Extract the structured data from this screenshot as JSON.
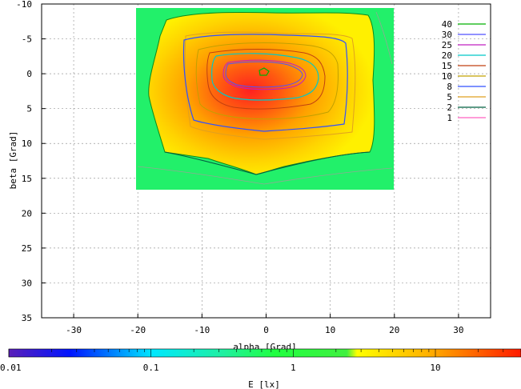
{
  "chart_data": {
    "type": "heatmap",
    "xlabel": "alpha [Grad]",
    "ylabel": "beta [Grad]",
    "xlim": [
      -35,
      35
    ],
    "ylim": [
      -10,
      35
    ],
    "y_inverted": true,
    "x_ticks": [
      "-30",
      "-20",
      "-10",
      "0",
      "10",
      "20",
      "30"
    ],
    "y_ticks": [
      "-10",
      "-5",
      "0",
      "5",
      "10",
      "15",
      "20",
      "25",
      "30",
      "35"
    ],
    "grid": true,
    "data_extent": {
      "alpha": [
        -20,
        20
      ],
      "beta": [
        -9,
        16.5
      ]
    },
    "contour_legend": {
      "placement": "top-right",
      "levels": [
        {
          "label": "40",
          "color": "#00b000"
        },
        {
          "label": "30",
          "color": "#5050ff"
        },
        {
          "label": "25",
          "color": "#c020c0"
        },
        {
          "label": "20",
          "color": "#00c8c8"
        },
        {
          "label": "15",
          "color": "#c04010"
        },
        {
          "label": "10",
          "color": "#c0a000"
        },
        {
          "label": "8",
          "color": "#3050ff"
        },
        {
          "label": "5",
          "color": "#e0a020"
        },
        {
          "label": "2",
          "color": "#006040"
        },
        {
          "label": "1",
          "color": "#ff60c0"
        }
      ]
    },
    "colorbar": {
      "label": "E [lx]",
      "scale": "log",
      "range": [
        0.01,
        40
      ],
      "ticks": [
        "0.01",
        "0.1",
        "1",
        "10"
      ]
    }
  }
}
